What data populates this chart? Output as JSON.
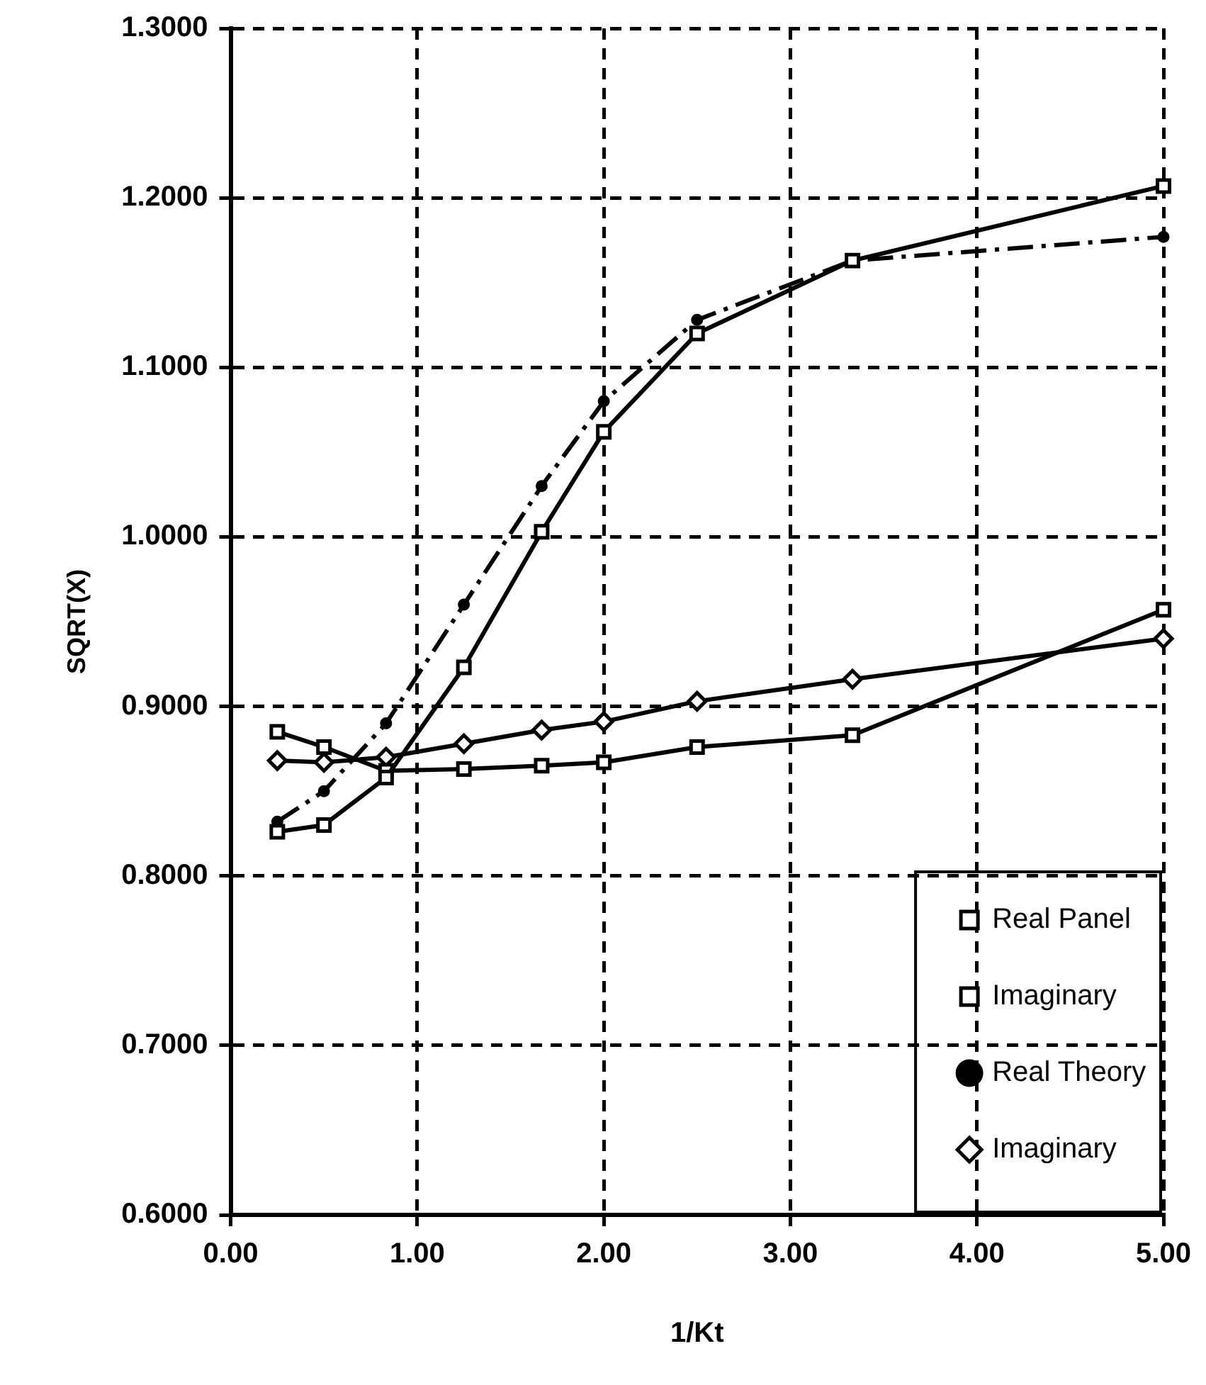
{
  "chart_data": {
    "type": "line",
    "xlabel": "1/Kt",
    "ylabel": "SQRT(X)",
    "x": [
      0.25,
      0.5,
      0.833,
      1.25,
      1.667,
      2.0,
      2.5,
      3.333,
      5.0
    ],
    "series": [
      {
        "name": "Real Panel",
        "color": "#000000",
        "marker": "square",
        "line_style": "solid",
        "values": [
          0.826,
          0.83,
          0.858,
          0.923,
          1.003,
          1.062,
          1.12,
          1.163,
          1.207
        ]
      },
      {
        "name": "Imaginary",
        "color": "#000000",
        "marker": "square",
        "line_style": "solid",
        "values": [
          0.885,
          0.876,
          0.862,
          0.863,
          0.865,
          0.867,
          0.876,
          0.883,
          0.957
        ]
      },
      {
        "name": "Real Theory",
        "color": "#000000",
        "marker": "circle",
        "line_style": "dashed",
        "values": [
          0.832,
          0.85,
          0.89,
          0.96,
          1.03,
          1.08,
          1.128,
          1.163,
          1.177
        ]
      },
      {
        "name": "Imaginary",
        "color": "#000000",
        "marker": "diamond",
        "line_style": "solid",
        "values": [
          0.868,
          0.867,
          0.87,
          0.878,
          0.886,
          0.891,
          0.903,
          0.916,
          0.94
        ]
      }
    ],
    "xlim": [
      0,
      5
    ],
    "xticks": [
      {
        "value": 0,
        "label": "0.00"
      },
      {
        "value": 1,
        "label": "1.00"
      },
      {
        "value": 2,
        "label": "2.00"
      },
      {
        "value": 3,
        "label": "3.00"
      },
      {
        "value": 4,
        "label": "4.00"
      },
      {
        "value": 5,
        "label": "5.00"
      }
    ],
    "ylim": [
      0.6,
      1.3
    ],
    "yticks": [
      {
        "value": 0.6,
        "label": "0.6000"
      },
      {
        "value": 0.7,
        "label": "0.7000"
      },
      {
        "value": 0.8,
        "label": "0.8000"
      },
      {
        "value": 0.9,
        "label": "0.9000"
      },
      {
        "value": 1.0,
        "label": "1.0000"
      },
      {
        "value": 1.1,
        "label": "1.1000"
      },
      {
        "value": 1.2,
        "label": "1.2000"
      },
      {
        "value": 1.3,
        "label": "1.3000"
      }
    ],
    "grid": true,
    "legend": "bottom right"
  }
}
